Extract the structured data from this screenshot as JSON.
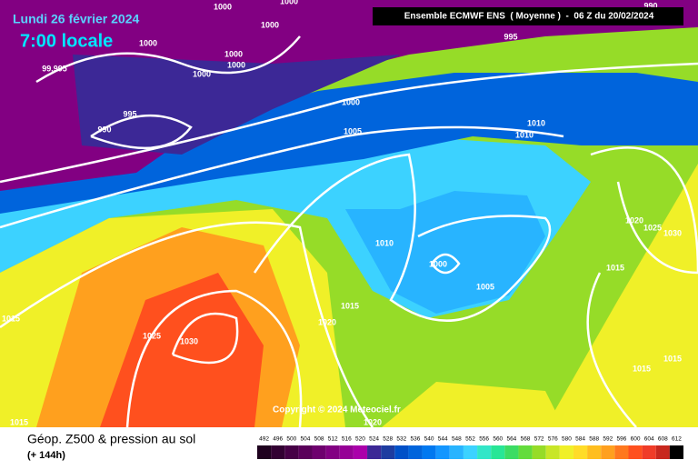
{
  "header": {
    "date": "Lundi 26 février 2024",
    "time": "7:00 locale",
    "model": "Ensemble ECMWF ENS  ( Moyenne )  -  06 Z du 20/02/2024"
  },
  "isobar_labels": [
    "1000",
    "1000",
    "1000",
    "1000",
    "1000",
    "1000",
    "1000",
    "99.995",
    "995",
    "990",
    "1000",
    "1005",
    "1010",
    "1010",
    "995",
    "990",
    "1010",
    "1000",
    "1005",
    "1015",
    "1020",
    "1025",
    "1030",
    "1015",
    "1015",
    "1020",
    "1020",
    "1025",
    "1030",
    "1015",
    "1015",
    "1015"
  ],
  "copyright": "Copyright © 2024 Meteociel.fr",
  "footer": {
    "title": "Géop. Z500 & pression au sol",
    "lead": "(+ 144h)"
  },
  "legend": {
    "values": [
      492,
      496,
      500,
      504,
      508,
      512,
      516,
      520,
      524,
      528,
      532,
      536,
      540,
      544,
      548,
      552,
      556,
      560,
      564,
      568,
      572,
      576,
      580,
      584,
      588,
      592,
      596,
      600,
      604,
      608,
      612
    ],
    "colors": [
      "#1e001e",
      "#320032",
      "#460046",
      "#5a005a",
      "#6e006e",
      "#820082",
      "#960096",
      "#aa00aa",
      "#3c2896",
      "#1e3ca0",
      "#0050c8",
      "#0064dc",
      "#0078f0",
      "#1496ff",
      "#28b4ff",
      "#3cd2ff",
      "#32e6c8",
      "#28e696",
      "#3cdc64",
      "#64dc3c",
      "#96dc28",
      "#c8e628",
      "#f0f028",
      "#ffdc28",
      "#ffbe1e",
      "#ffa01e",
      "#ff781e",
      "#ff501e",
      "#f03c28",
      "#c8281e",
      "#000000"
    ]
  }
}
